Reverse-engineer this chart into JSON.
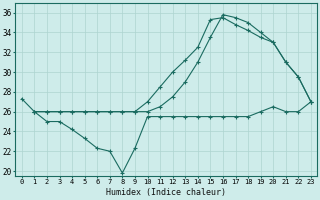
{
  "background_color": "#ceecea",
  "grid_color": "#aed4d0",
  "line_color": "#1a6b60",
  "marker": "+",
  "marker_size": 3,
  "xlabel": "Humidex (Indice chaleur)",
  "xlim": [
    -0.5,
    23.5
  ],
  "ylim": [
    19.5,
    37
  ],
  "yticks": [
    20,
    22,
    24,
    26,
    28,
    30,
    32,
    34,
    36
  ],
  "xticks": [
    0,
    1,
    2,
    3,
    4,
    5,
    6,
    7,
    8,
    9,
    10,
    11,
    12,
    13,
    14,
    15,
    16,
    17,
    18,
    19,
    20,
    21,
    22,
    23
  ],
  "line1_x": [
    0,
    1,
    2,
    3,
    4,
    5,
    6,
    7,
    8,
    9,
    10,
    11,
    12,
    13,
    14,
    15,
    16,
    17,
    18,
    19,
    20,
    21,
    22,
    23
  ],
  "line1_y": [
    27.3,
    26.0,
    25.0,
    25.0,
    24.2,
    23.3,
    22.3,
    22.0,
    19.8,
    22.3,
    25.5,
    25.5,
    25.5,
    25.5,
    25.5,
    25.5,
    25.5,
    25.5,
    25.5,
    26.0,
    26.5,
    26.0,
    26.0,
    27.0
  ],
  "line2_x": [
    1,
    2,
    3,
    4,
    5,
    6,
    7,
    8,
    9,
    10,
    11,
    12,
    13,
    14,
    15,
    16,
    17,
    18,
    19,
    20,
    21,
    22,
    23
  ],
  "line2_y": [
    26.0,
    26.0,
    26.0,
    26.0,
    26.0,
    26.0,
    26.0,
    26.0,
    26.0,
    27.0,
    28.5,
    30.0,
    31.2,
    32.5,
    35.3,
    35.5,
    34.8,
    34.2,
    33.5,
    33.0,
    31.0,
    29.5,
    27.0
  ],
  "line3_x": [
    1,
    2,
    3,
    4,
    5,
    6,
    7,
    8,
    9,
    10,
    11,
    12,
    13,
    14,
    15,
    16,
    17,
    18,
    19,
    20,
    21,
    22,
    23
  ],
  "line3_y": [
    26.0,
    26.0,
    26.0,
    26.0,
    26.0,
    26.0,
    26.0,
    26.0,
    26.0,
    26.0,
    26.5,
    27.5,
    29.0,
    31.0,
    33.5,
    35.8,
    35.5,
    35.0,
    34.0,
    33.0,
    31.0,
    29.5,
    27.0
  ]
}
